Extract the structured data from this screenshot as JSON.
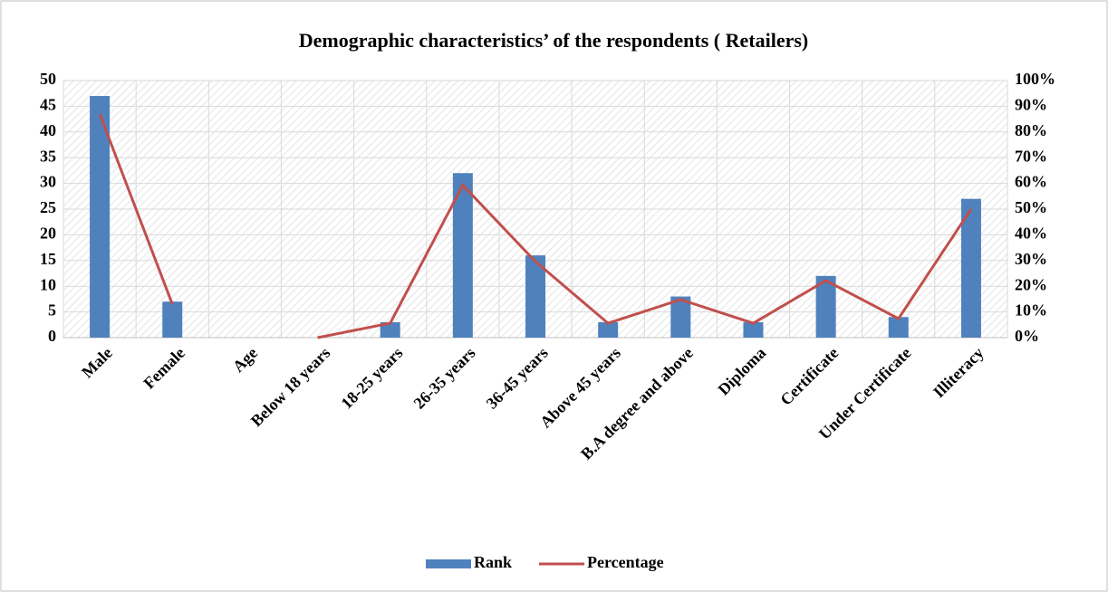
{
  "chart_data": {
    "type": "bar_line",
    "title": "Demographic characteristics’ of the respondents ( Retailers)",
    "categories": [
      "Male",
      "Female",
      "Age",
      "Below 18 years",
      "18-25 years",
      "26-35 years",
      "36-45 years",
      "Above 45 years",
      "B.A degree and above",
      "Diploma",
      "Certificate",
      "Under Certificate",
      "Illiteracy"
    ],
    "series": [
      {
        "name": "Rank",
        "type": "bar",
        "color": "#4f81bd",
        "values": [
          47,
          7,
          null,
          0,
          3,
          32,
          16,
          3,
          8,
          3,
          12,
          4,
          27
        ]
      },
      {
        "name": "Percentage",
        "type": "line",
        "axis": "y2",
        "color": "#c0504d",
        "values": [
          87,
          13,
          null,
          0,
          5.6,
          59.3,
          29.6,
          5.6,
          14.8,
          5.6,
          22.2,
          7.4,
          50
        ]
      }
    ],
    "ylim": [
      0,
      50
    ],
    "yticks": [
      0,
      5,
      10,
      15,
      20,
      25,
      30,
      35,
      40,
      45,
      50
    ],
    "y2lim": [
      0,
      100
    ],
    "y2ticks": [
      {
        "value": 0,
        "label": "0%"
      },
      {
        "value": 10,
        "label": "10%"
      },
      {
        "value": 20,
        "label": "20%"
      },
      {
        "value": 30,
        "label": "30%"
      },
      {
        "value": 40,
        "label": "40%"
      },
      {
        "value": 50,
        "label": "50%"
      },
      {
        "value": 60,
        "label": "60%"
      },
      {
        "value": 70,
        "label": "70%"
      },
      {
        "value": 80,
        "label": "80%"
      },
      {
        "value": 90,
        "label": "90%"
      },
      {
        "value": 100,
        "label": "100%"
      }
    ],
    "grid": true,
    "legend": "bottom"
  }
}
